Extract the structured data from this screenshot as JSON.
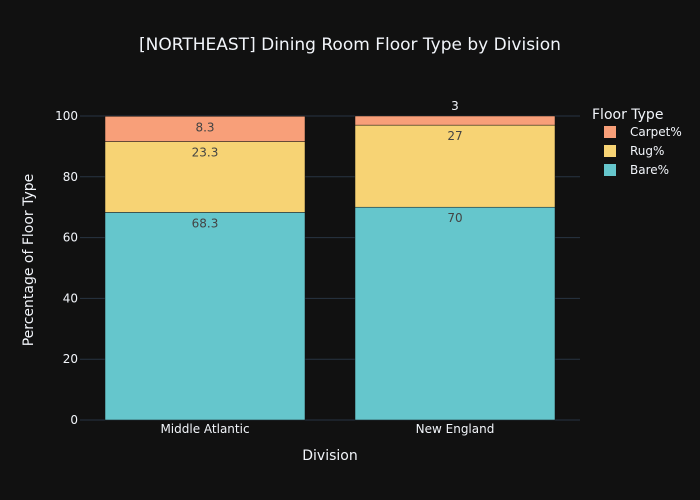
{
  "chart_data": {
    "type": "bar",
    "stacked": true,
    "title": "[NORTHEAST] Dining Room Floor Type by Division",
    "xlabel": "Division",
    "ylabel": "Percentage of Floor Type",
    "categories": [
      "Middle Atlantic",
      "New England"
    ],
    "ylim": [
      0,
      100
    ],
    "yticks": [
      0,
      20,
      40,
      60,
      80,
      100
    ],
    "grid": true,
    "legend": {
      "title": "Floor Type",
      "placement": "top-right"
    },
    "series": [
      {
        "name": "Bare%",
        "values": [
          68.3,
          70
        ],
        "color": "#65c6cc",
        "labels": [
          "68.3",
          "70"
        ]
      },
      {
        "name": "Rug%",
        "values": [
          23.3,
          27
        ],
        "color": "#f7d374",
        "labels": [
          "23.3",
          "27"
        ]
      },
      {
        "name": "Carpet%",
        "values": [
          8.3,
          3
        ],
        "color": "#f89f79",
        "labels": [
          "8.3",
          "3"
        ]
      }
    ],
    "legend_order": [
      "Carpet%",
      "Rug%",
      "Bare%"
    ]
  },
  "colors": {
    "background": "#111111",
    "text": "#f2f5fa",
    "grid": "#283442",
    "inner_label": "#444444"
  }
}
